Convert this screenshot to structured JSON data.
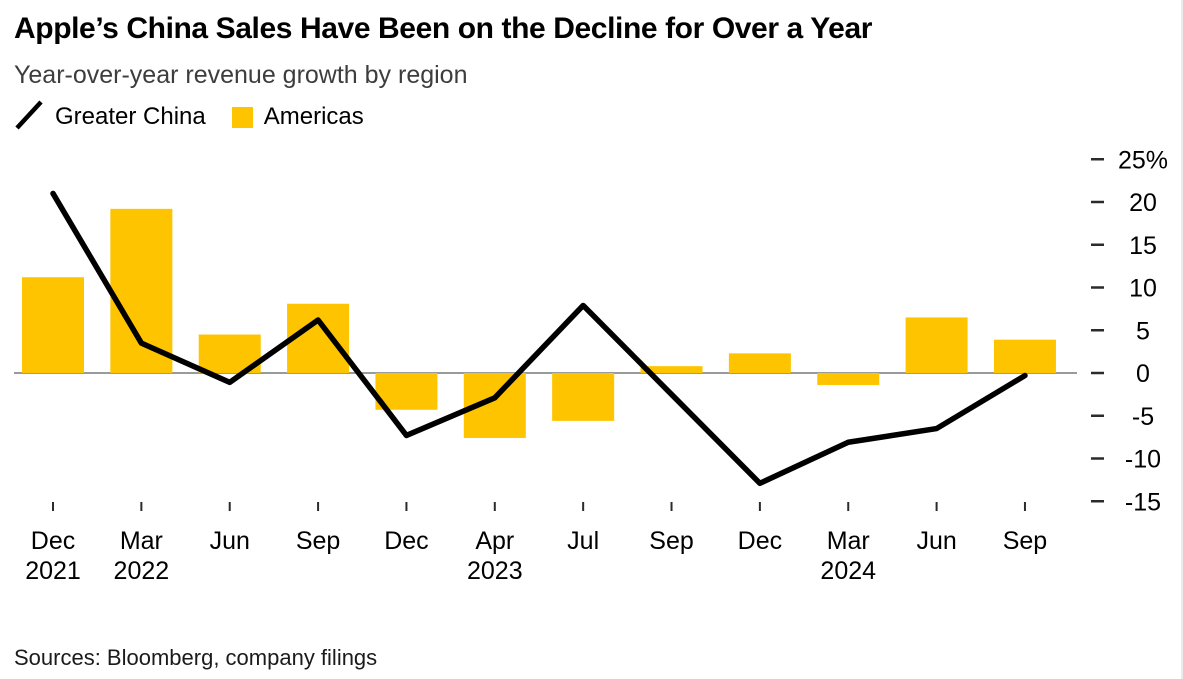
{
  "header": {
    "title": "Apple’s China Sales Have Been on the Decline for Over a Year",
    "subtitle": "Year-over-year revenue growth by region"
  },
  "legend": {
    "items": [
      {
        "label": "Greater China",
        "marker": "line-slash-icon",
        "color": "#000000"
      },
      {
        "label": "Americas",
        "marker": "square-swatch",
        "color": "#FFC400"
      }
    ]
  },
  "footer": {
    "source": "Sources: Bloomberg, company filings"
  },
  "chart_data": {
    "type": "combo",
    "title": "Apple’s China Sales Have Been on the Decline for Over a Year",
    "subtitle": "Year-over-year revenue growth by region",
    "categories": [
      "Dec 2021",
      "Mar 2022",
      "Jun 2022",
      "Sep 2022",
      "Dec 2022",
      "Apr 2023",
      "Jul 2023",
      "Sep 2023",
      "Dec 2023",
      "Mar 2024",
      "Jun 2024",
      "Sep 2024"
    ],
    "x_tick_labels": [
      {
        "month": "Dec",
        "year": "2021"
      },
      {
        "month": "Mar",
        "year": "2022"
      },
      {
        "month": "Jun",
        "year": ""
      },
      {
        "month": "Sep",
        "year": ""
      },
      {
        "month": "Dec",
        "year": ""
      },
      {
        "month": "Apr",
        "year": "2023"
      },
      {
        "month": "Jul",
        "year": ""
      },
      {
        "month": "Sep",
        "year": ""
      },
      {
        "month": "Dec",
        "year": ""
      },
      {
        "month": "Mar",
        "year": "2024"
      },
      {
        "month": "Jun",
        "year": ""
      },
      {
        "month": "Sep",
        "year": ""
      }
    ],
    "series": [
      {
        "name": "Americas",
        "type": "bar",
        "color": "#FFC400",
        "values": [
          11.2,
          19.2,
          4.5,
          8.1,
          -4.3,
          -7.6,
          -5.6,
          0.8,
          2.3,
          -1.4,
          6.5,
          3.9
        ]
      },
      {
        "name": "Greater China",
        "type": "line",
        "color": "#000000",
        "values": [
          21.0,
          3.5,
          -1.1,
          6.2,
          -7.3,
          -2.9,
          7.9,
          -2.5,
          -12.9,
          -8.1,
          -6.5,
          -0.3
        ]
      }
    ],
    "y_axis": {
      "unit": "%",
      "side": "right",
      "min": -15,
      "max": 25,
      "tick_step": 5,
      "ticks": [
        {
          "value": 25,
          "label": "25%"
        },
        {
          "value": 20,
          "label": "20"
        },
        {
          "value": 15,
          "label": "15"
        },
        {
          "value": 10,
          "label": "10"
        },
        {
          "value": 5,
          "label": "5"
        },
        {
          "value": 0,
          "label": "0"
        },
        {
          "value": -5,
          "label": "-5"
        },
        {
          "value": -10,
          "label": "-10"
        },
        {
          "value": -15,
          "label": "-15"
        }
      ]
    },
    "baseline": 0,
    "grid": false,
    "legend_position": "top-left"
  }
}
